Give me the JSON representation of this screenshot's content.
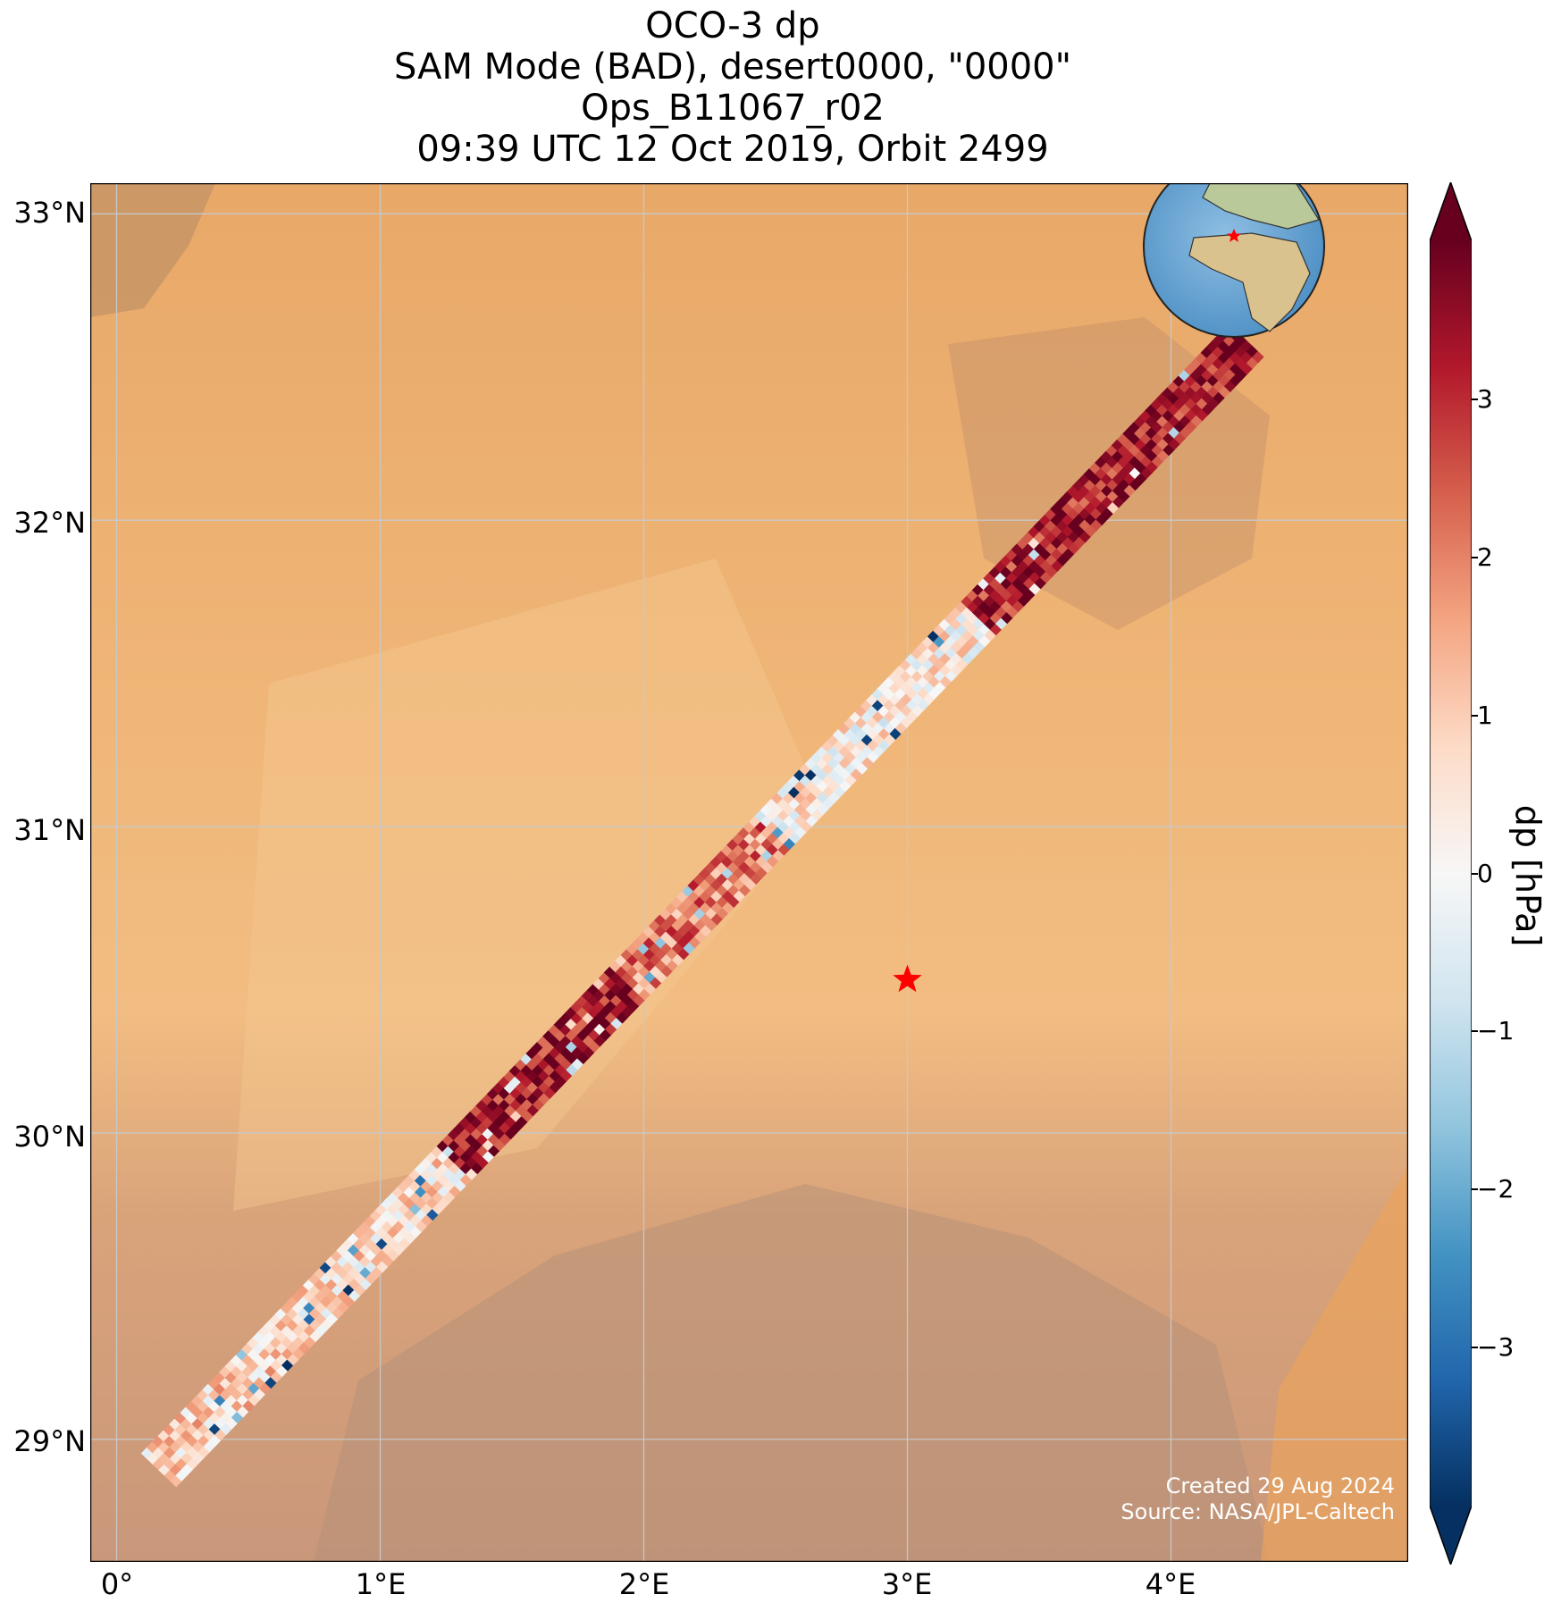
{
  "title_lines": [
    "OCO-3 dp",
    "SAM Mode (BAD), desert0000, \"0000\"",
    "Ops_B11067_r02",
    "09:39 UTC 12 Oct 2019, Orbit 2499"
  ],
  "map": {
    "lon_range": [
      -0.1,
      4.9
    ],
    "lat_range": [
      28.6,
      33.1
    ],
    "lat_ticks": [
      "33°N",
      "32°N",
      "31°N",
      "30°N",
      "29°N"
    ],
    "lon_ticks": [
      "0°",
      "1°E",
      "2°E",
      "3°E",
      "4°E"
    ],
    "gridlines": true,
    "background": "satellite desert imagery",
    "target_marker": {
      "lon": 3.0,
      "lat": 30.5,
      "symbol": "red-star"
    },
    "inset_globe": {
      "position": "top-right",
      "marker": "red-star"
    },
    "swath": {
      "start": {
        "lon": 0.18,
        "lat": 28.9
      },
      "end": {
        "lon": 4.32,
        "lat": 32.6
      }
    }
  },
  "credits": {
    "created": "Created 29 Aug 2024",
    "source": "Source: NASA/JPL-Caltech"
  },
  "colorbar": {
    "label": "dp [hPa]",
    "ticks": [
      "3",
      "2",
      "1",
      "0",
      "−1",
      "−2",
      "−3"
    ],
    "tick_values": [
      3,
      2,
      1,
      0,
      -1,
      -2,
      -3
    ],
    "vmin": -4,
    "vmax": 4,
    "colormap": "RdBu_r",
    "colors": [
      "#053061",
      "#2166ac",
      "#4393c3",
      "#92c5de",
      "#d1e5f0",
      "#f7f7f7",
      "#fddbc7",
      "#f4a582",
      "#d6604d",
      "#b2182b",
      "#67001f"
    ]
  },
  "chart_data": {
    "type": "heatmap",
    "title": "OCO-3 dp",
    "xlabel": "",
    "ylabel": "",
    "xlim": [
      -0.1,
      4.9
    ],
    "ylim": [
      28.6,
      33.1
    ],
    "segments": [
      {
        "lon_from": 0.18,
        "lon_to": 0.6,
        "dp_mean": 0.8
      },
      {
        "lon_from": 0.6,
        "lon_to": 1.3,
        "dp_mean": 0.6
      },
      {
        "lon_from": 1.3,
        "lon_to": 1.95,
        "dp_mean": 3.4
      },
      {
        "lon_from": 1.95,
        "lon_to": 2.5,
        "dp_mean": 2.0
      },
      {
        "lon_from": 2.5,
        "lon_to": 3.3,
        "dp_mean": 0.3
      },
      {
        "lon_from": 3.3,
        "lon_to": 4.32,
        "dp_mean": 3.3
      }
    ]
  }
}
